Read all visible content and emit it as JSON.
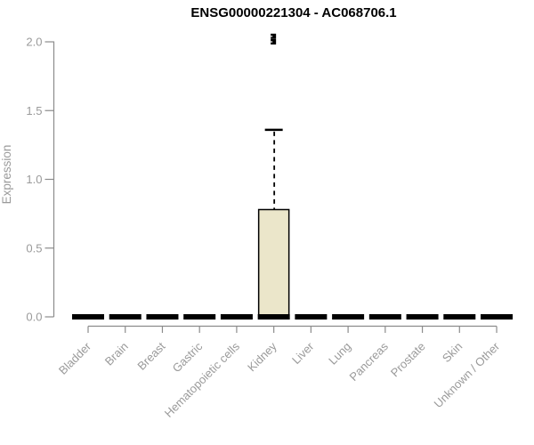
{
  "page": {
    "title": "ENSG00000221304 - AC068706.1"
  },
  "chart_data": {
    "type": "boxplot",
    "title": "ENSG00000221304 - AC068706.1",
    "ylabel": "Expression",
    "xlabel": "",
    "ylim": [
      0,
      2.1
    ],
    "ytick_values": [
      0,
      0.5,
      1,
      1.5,
      2
    ],
    "ytick_labels": [
      "0.0",
      "0.5",
      "1.0",
      "1.5",
      "2.0"
    ],
    "grid": false,
    "legend": false,
    "categories": [
      "Bladder",
      "Brain",
      "Breast",
      "Gastric",
      "Hematopoietic cells",
      "Kidney",
      "Liver",
      "Lung",
      "Pancreas",
      "Prostate",
      "Skin",
      "Unknown / Other"
    ],
    "boxes": [
      {
        "category": "Bladder",
        "q1": 0,
        "median": 0,
        "q3": 0,
        "whisker_low": 0,
        "whisker_high": 0,
        "outliers": []
      },
      {
        "category": "Brain",
        "q1": 0,
        "median": 0,
        "q3": 0,
        "whisker_low": 0,
        "whisker_high": 0,
        "outliers": []
      },
      {
        "category": "Breast",
        "q1": 0,
        "median": 0,
        "q3": 0,
        "whisker_low": 0,
        "whisker_high": 0,
        "outliers": []
      },
      {
        "category": "Gastric",
        "q1": 0,
        "median": 0,
        "q3": 0,
        "whisker_low": 0,
        "whisker_high": 0,
        "outliers": []
      },
      {
        "category": "Hematopoietic cells",
        "q1": 0,
        "median": 0,
        "q3": 0,
        "whisker_low": 0,
        "whisker_high": 0,
        "outliers": []
      },
      {
        "category": "Kidney",
        "q1": 0,
        "median": 0,
        "q3": 0.78,
        "whisker_low": 0,
        "whisker_high": 1.36,
        "outliers": [
          2.0,
          2.04
        ]
      },
      {
        "category": "Liver",
        "q1": 0,
        "median": 0,
        "q3": 0,
        "whisker_low": 0,
        "whisker_high": 0,
        "outliers": []
      },
      {
        "category": "Lung",
        "q1": 0,
        "median": 0,
        "q3": 0,
        "whisker_low": 0,
        "whisker_high": 0,
        "outliers": []
      },
      {
        "category": "Pancreas",
        "q1": 0,
        "median": 0,
        "q3": 0,
        "whisker_low": 0,
        "whisker_high": 0,
        "outliers": []
      },
      {
        "category": "Prostate",
        "q1": 0,
        "median": 0,
        "q3": 0,
        "whisker_low": 0,
        "whisker_high": 0,
        "outliers": []
      },
      {
        "category": "Skin",
        "q1": 0,
        "median": 0,
        "q3": 0,
        "whisker_low": 0,
        "whisker_high": 0,
        "outliers": []
      },
      {
        "category": "Unknown / Other",
        "q1": 0,
        "median": 0,
        "q3": 0,
        "whisker_low": 0,
        "whisker_high": 0,
        "outliers": []
      }
    ],
    "colors": {
      "box_fill": "#ebe6ca",
      "box_border": "#000000",
      "median": "#000000",
      "whisker": "#000000",
      "outlier": "#000000",
      "axis": "#8c8c8c",
      "tick_label": "#9a9a9a",
      "title": "#000000"
    }
  }
}
